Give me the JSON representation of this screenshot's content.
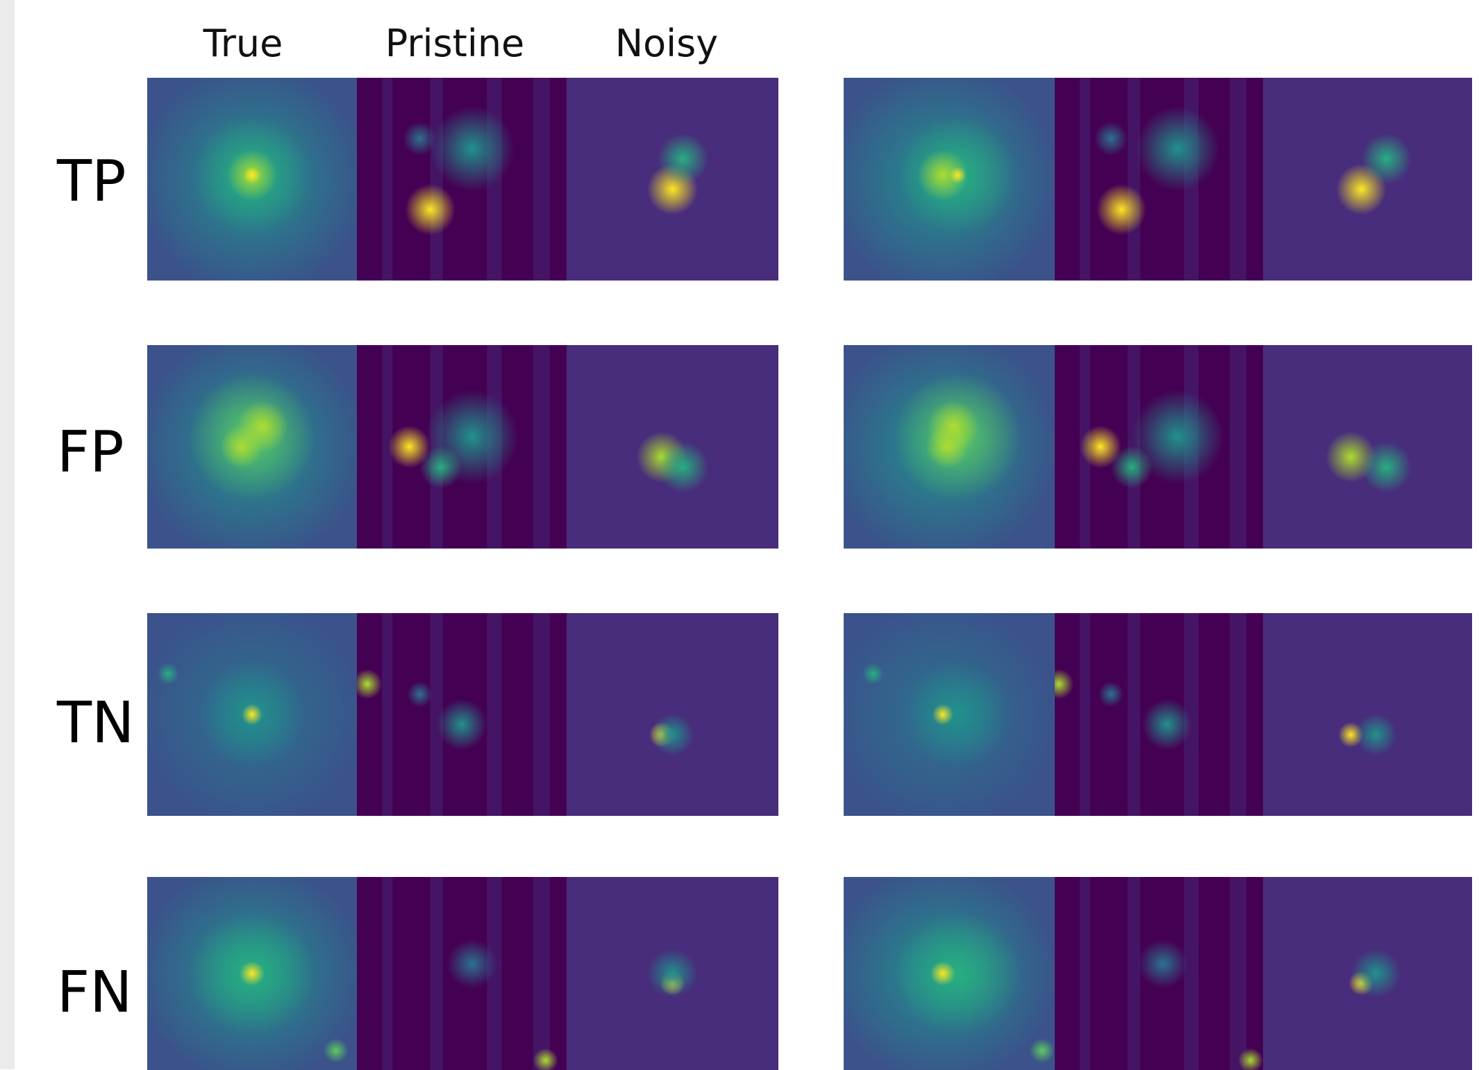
{
  "figure": {
    "column_headers": [
      "True",
      "Pristine",
      "Noisy"
    ],
    "row_labels": [
      "TP",
      "FP",
      "TN",
      "FN"
    ],
    "colormap": [
      "#440154",
      "#472d7b",
      "#3b528b",
      "#2c728e",
      "#21918c",
      "#28ae80",
      "#5ec962",
      "#addc30",
      "#fde725"
    ]
  }
}
